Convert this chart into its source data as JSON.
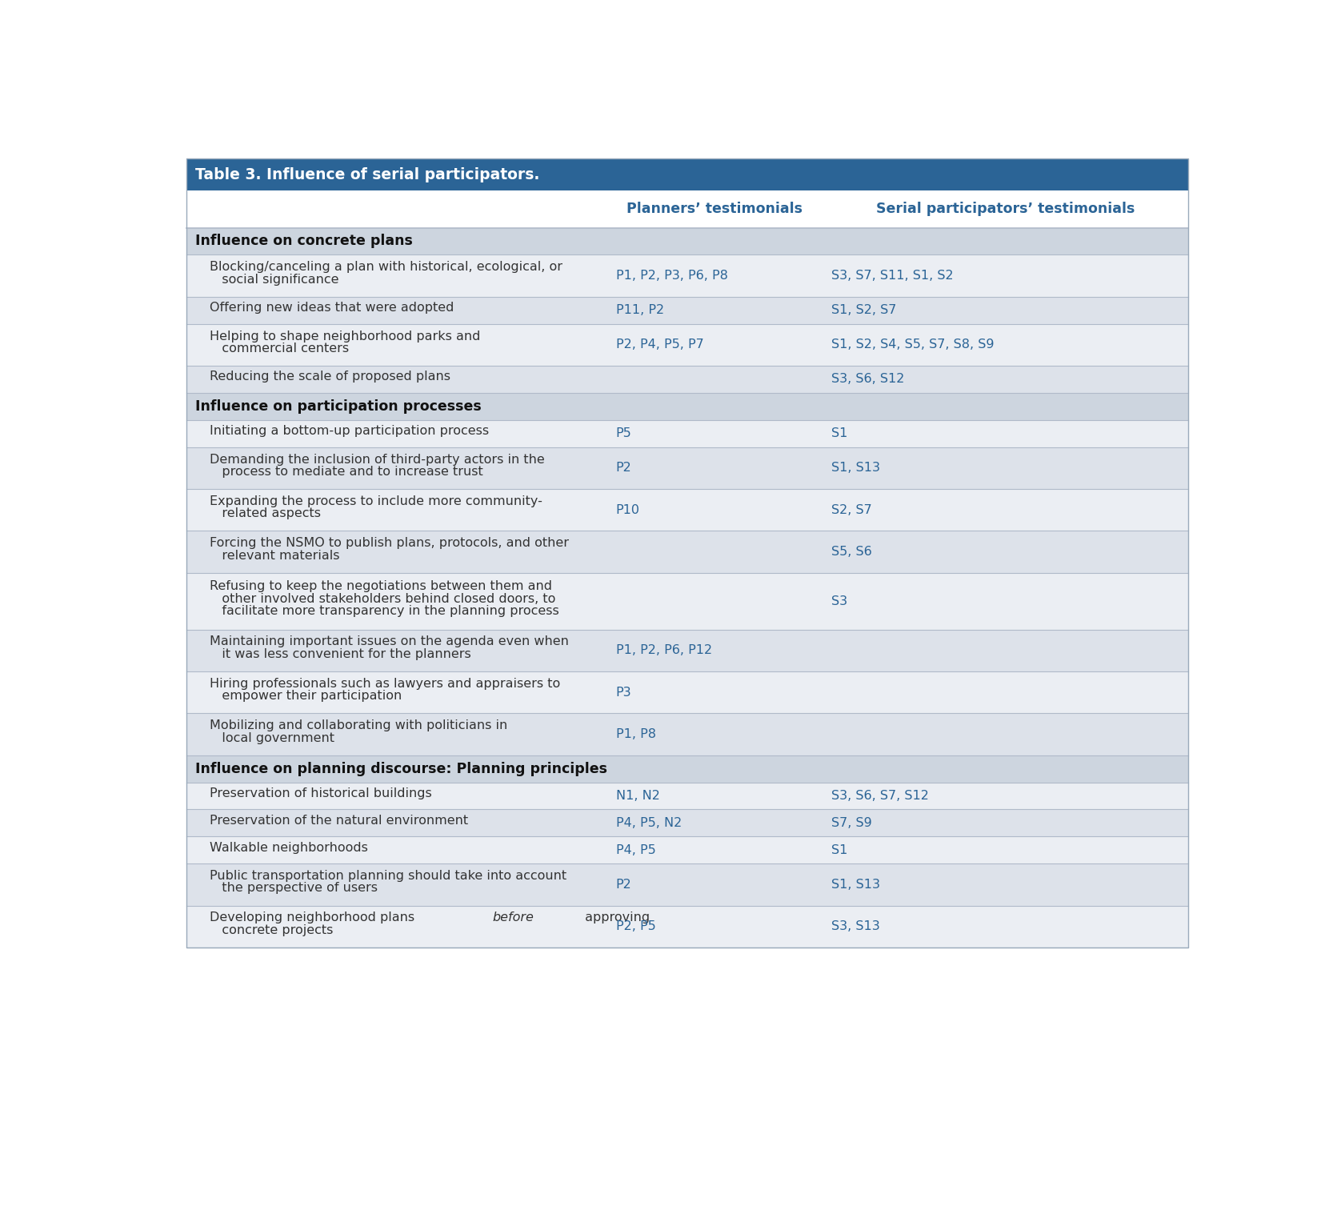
{
  "title": "Table 3. Influence of serial participators.",
  "header_bg": "#2B6496",
  "header_text_color": "#FFFFFF",
  "col_header_color": "#2B6496",
  "section_bg": "#CDD5DF",
  "row_bg_light": "#EBEEf3",
  "row_bg_dark": "#DDE2EA",
  "divider_color": "#B0BAC9",
  "outer_border": "#9AAABB",
  "col_headers": [
    "",
    "Planners’ testimonials",
    "Serial participators’ testimonials"
  ],
  "col_splits": [
    0.42,
    0.635
  ],
  "sections": [
    {
      "section_title": "Influence on concrete plans",
      "rows": [
        {
          "desc_lines": [
            "Blocking/canceling a plan with historical, ecological, or",
            "   social significance"
          ],
          "planners": "P1, P2, P3, P6, P8",
          "serial": "S3, S7, S11, S1, S2"
        },
        {
          "desc_lines": [
            "Offering new ideas that were adopted"
          ],
          "planners": "P11, P2",
          "serial": "S1, S2, S7"
        },
        {
          "desc_lines": [
            "Helping to shape neighborhood parks and",
            "   commercial centers"
          ],
          "planners": "P2, P4, P5, P7",
          "serial": "S1, S2, S4, S5, S7, S8, S9"
        },
        {
          "desc_lines": [
            "Reducing the scale of proposed plans"
          ],
          "planners": "",
          "serial": "S3, S6, S12"
        }
      ]
    },
    {
      "section_title": "Influence on participation processes",
      "rows": [
        {
          "desc_lines": [
            "Initiating a bottom-up participation process"
          ],
          "planners": "P5",
          "serial": "S1"
        },
        {
          "desc_lines": [
            "Demanding the inclusion of third-party actors in the",
            "   process to mediate and to increase trust"
          ],
          "planners": "P2",
          "serial": "S1, S13"
        },
        {
          "desc_lines": [
            "Expanding the process to include more community-",
            "   related aspects"
          ],
          "planners": "P10",
          "serial": "S2, S7"
        },
        {
          "desc_lines": [
            "Forcing the NSMO to publish plans, protocols, and other",
            "   relevant materials"
          ],
          "planners": "",
          "serial": "S5, S6"
        },
        {
          "desc_lines": [
            "Refusing to keep the negotiations between them and",
            "   other involved stakeholders behind closed doors, to",
            "   facilitate more transparency in the planning process"
          ],
          "planners": "",
          "serial": "S3"
        },
        {
          "desc_lines": [
            "Maintaining important issues on the agenda even when",
            "   it was less convenient for the planners"
          ],
          "planners": "P1, P2, P6, P12",
          "serial": ""
        },
        {
          "desc_lines": [
            "Hiring professionals such as lawyers and appraisers to",
            "   empower their participation"
          ],
          "planners": "P3",
          "serial": ""
        },
        {
          "desc_lines": [
            "Mobilizing and collaborating with politicians in",
            "   local government"
          ],
          "planners": "P1, P8",
          "serial": ""
        }
      ]
    },
    {
      "section_title": "Influence on planning discourse: Planning principles",
      "rows": [
        {
          "desc_lines": [
            "Preservation of historical buildings"
          ],
          "planners": "N1, N2",
          "serial": "S3, S6, S7, S12"
        },
        {
          "desc_lines": [
            "Preservation of the natural environment"
          ],
          "planners": "P4, P5, N2",
          "serial": "S7, S9"
        },
        {
          "desc_lines": [
            "Walkable neighborhoods"
          ],
          "planners": "P4, P5",
          "serial": "S1"
        },
        {
          "desc_lines": [
            "Public transportation planning should take into account",
            "   the perspective of users"
          ],
          "planners": "P2",
          "serial": "S1, S13"
        },
        {
          "desc_lines": [
            "Developing neighborhood plans ⁠before⁠ approving",
            "   concrete projects"
          ],
          "planners": "P2, P5",
          "serial": "S3, S13",
          "italic_parts": [
            [
              "Developing neighborhood plans ",
              "before",
              " approving"
            ],
            null
          ]
        }
      ]
    }
  ]
}
